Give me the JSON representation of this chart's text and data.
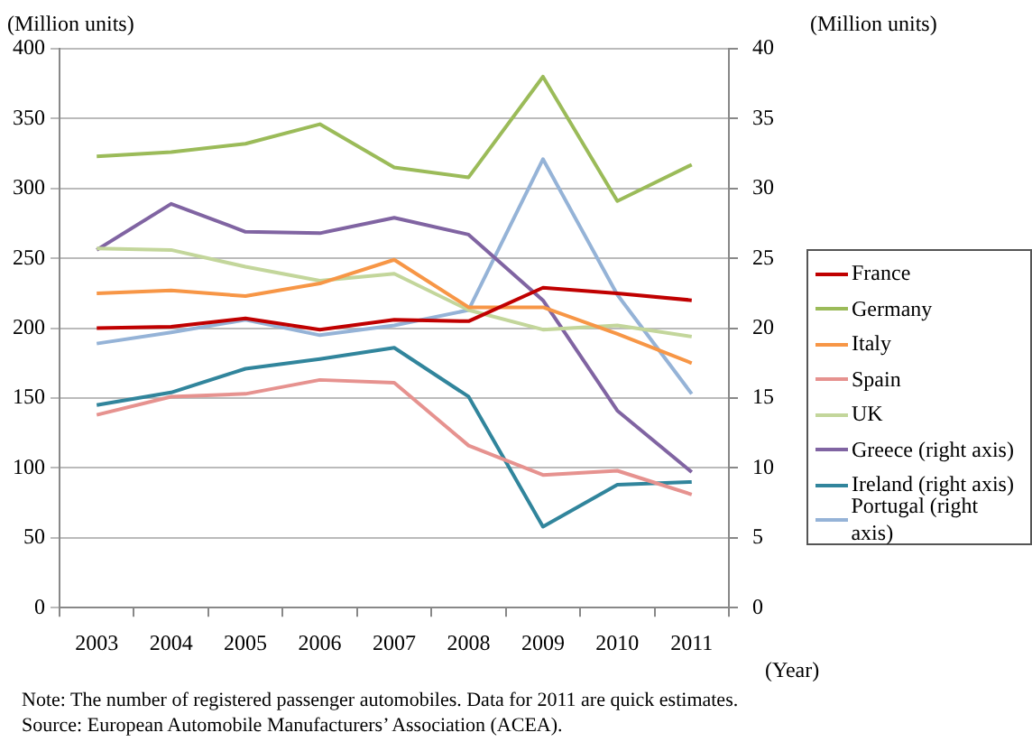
{
  "chart_data": {
    "type": "line",
    "xlabel": "(Year)",
    "ylabel": "(Million units)",
    "y2label": "(Million units)",
    "categories": [
      "2003",
      "2004",
      "2005",
      "2006",
      "2007",
      "2008",
      "2009",
      "2010",
      "2011"
    ],
    "series": [
      {
        "name": "France",
        "color": "#c00000",
        "values": [
          200,
          201,
          207,
          199,
          206,
          205,
          229,
          225,
          220
        ]
      },
      {
        "name": "Germany",
        "color": "#9bbb59",
        "values": [
          323,
          326,
          332,
          346,
          315,
          308,
          380,
          291,
          317
        ]
      },
      {
        "name": "Italy",
        "color": "#f79646",
        "values": [
          225,
          227,
          223,
          232,
          249,
          215,
          215,
          196,
          175
        ]
      },
      {
        "name": "Spain",
        "color": "#e6928f",
        "values": [
          138,
          151,
          153,
          163,
          161,
          116,
          95,
          98,
          81
        ]
      },
      {
        "name": "UK",
        "color": "#c3d69b",
        "values": [
          257,
          256,
          244,
          234,
          239,
          213,
          199,
          202,
          194
        ]
      },
      {
        "name": "Greece (right axis)",
        "color": "#8064a2",
        "axis": "y2",
        "values": [
          25.6,
          28.9,
          26.9,
          26.8,
          27.9,
          26.7,
          22,
          14.1,
          9.7
        ]
      },
      {
        "name": "Ireland (right axis)",
        "color": "#31859c",
        "axis": "y2",
        "values": [
          14.5,
          15.4,
          17.1,
          17.8,
          18.6,
          15.1,
          5.8,
          8.8,
          9.0
        ]
      },
      {
        "name": "Portugal (right axis)",
        "color": "#95b3d7",
        "axis": "y2",
        "values": [
          18.9,
          19.7,
          20.6,
          19.5,
          20.2,
          21.3,
          32.1,
          22.4,
          15.3
        ]
      }
    ],
    "ylim": [
      0,
      400
    ],
    "yticks": [
      0,
      50,
      100,
      150,
      200,
      250,
      300,
      350,
      400
    ],
    "y2lim": [
      0,
      40
    ],
    "y2ticks": [
      0,
      5,
      10,
      15,
      20,
      25,
      30,
      35,
      40
    ],
    "grid": "y",
    "legend": "right",
    "marker": "none",
    "line_style": "solid",
    "annotations": [
      "Note: The number of registered passenger automobiles. Data for 2011 are quick estimates.",
      "Source: European Automobile Manufacturers’ Association (ACEA)."
    ]
  }
}
